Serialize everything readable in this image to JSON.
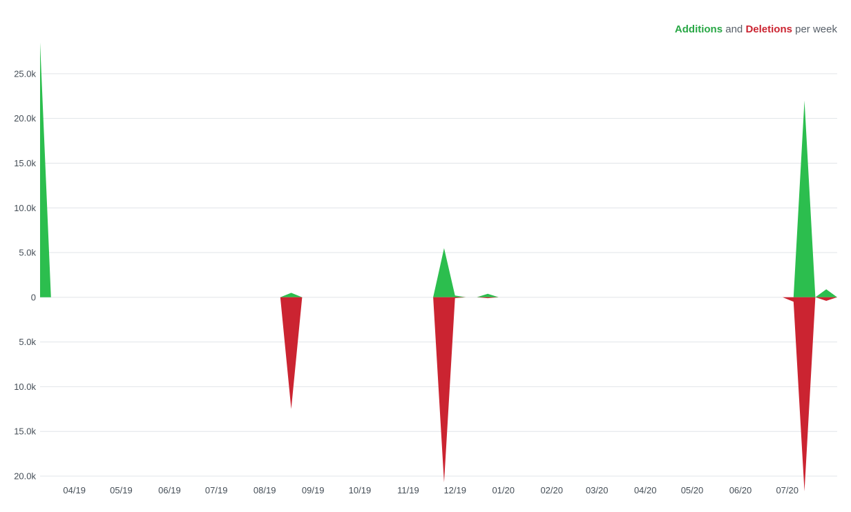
{
  "legend": {
    "additions_label": "Additions",
    "and_text": "and",
    "deletions_label": "Deletions",
    "per_week_text": "per week"
  },
  "colors": {
    "additions": "#2cbe4e",
    "deletions": "#cb2431",
    "grid": "#e1e4e8",
    "text": "#586069"
  },
  "chart_data": {
    "type": "area",
    "ylim": [
      -20000,
      28000
    ],
    "y_ticks": [
      {
        "value": 25000,
        "label": "25.0k"
      },
      {
        "value": 20000,
        "label": "20.0k"
      },
      {
        "value": 15000,
        "label": "15.0k"
      },
      {
        "value": 10000,
        "label": "10.0k"
      },
      {
        "value": 5000,
        "label": "5.0k"
      },
      {
        "value": 0,
        "label": "0"
      },
      {
        "value": -5000,
        "label": "5.0k"
      },
      {
        "value": -10000,
        "label": "10.0k"
      },
      {
        "value": -15000,
        "label": "15.0k"
      },
      {
        "value": -20000,
        "label": "20.0k"
      }
    ],
    "x_range": [
      "2019-03-10",
      "2020-08-02"
    ],
    "x_ticks": [
      {
        "date": "2019-04-01",
        "label": "04/19"
      },
      {
        "date": "2019-05-01",
        "label": "05/19"
      },
      {
        "date": "2019-06-01",
        "label": "06/19"
      },
      {
        "date": "2019-07-01",
        "label": "07/19"
      },
      {
        "date": "2019-08-01",
        "label": "08/19"
      },
      {
        "date": "2019-09-01",
        "label": "09/19"
      },
      {
        "date": "2019-10-01",
        "label": "10/19"
      },
      {
        "date": "2019-11-01",
        "label": "11/19"
      },
      {
        "date": "2019-12-01",
        "label": "12/19"
      },
      {
        "date": "2020-01-01",
        "label": "01/20"
      },
      {
        "date": "2020-02-01",
        "label": "02/20"
      },
      {
        "date": "2020-03-01",
        "label": "03/20"
      },
      {
        "date": "2020-04-01",
        "label": "04/20"
      },
      {
        "date": "2020-05-01",
        "label": "05/20"
      },
      {
        "date": "2020-06-01",
        "label": "06/20"
      },
      {
        "date": "2020-07-01",
        "label": "07/20"
      }
    ],
    "series": [
      {
        "name": "Additions",
        "color": "#2cbe4e",
        "points": [
          {
            "date": "2019-03-10",
            "value": 28500
          },
          {
            "date": "2019-03-17",
            "value": 0
          },
          {
            "date": "2019-08-11",
            "value": 0
          },
          {
            "date": "2019-08-18",
            "value": 500
          },
          {
            "date": "2019-08-25",
            "value": 0
          },
          {
            "date": "2019-11-17",
            "value": 0
          },
          {
            "date": "2019-11-24",
            "value": 5500
          },
          {
            "date": "2019-12-01",
            "value": 200
          },
          {
            "date": "2019-12-08",
            "value": 0
          },
          {
            "date": "2019-12-15",
            "value": 0
          },
          {
            "date": "2019-12-22",
            "value": 400
          },
          {
            "date": "2019-12-29",
            "value": 0
          },
          {
            "date": "2020-07-05",
            "value": 0
          },
          {
            "date": "2020-07-12",
            "value": 22000
          },
          {
            "date": "2020-07-19",
            "value": 0
          },
          {
            "date": "2020-07-26",
            "value": 900
          },
          {
            "date": "2020-08-02",
            "value": 0
          }
        ]
      },
      {
        "name": "Deletions",
        "color": "#cb2431",
        "points": [
          {
            "date": "2019-03-10",
            "value": 0
          },
          {
            "date": "2019-08-11",
            "value": 0
          },
          {
            "date": "2019-08-18",
            "value": -12500
          },
          {
            "date": "2019-08-25",
            "value": 0
          },
          {
            "date": "2019-11-17",
            "value": 0
          },
          {
            "date": "2019-11-24",
            "value": -20700
          },
          {
            "date": "2019-12-01",
            "value": -100
          },
          {
            "date": "2019-12-08",
            "value": 0
          },
          {
            "date": "2019-12-15",
            "value": 0
          },
          {
            "date": "2019-12-22",
            "value": -100
          },
          {
            "date": "2019-12-29",
            "value": 0
          },
          {
            "date": "2020-06-28",
            "value": 0
          },
          {
            "date": "2020-07-05",
            "value": -500
          },
          {
            "date": "2020-07-12",
            "value": -21700
          },
          {
            "date": "2020-07-19",
            "value": 0
          },
          {
            "date": "2020-07-26",
            "value": -400
          },
          {
            "date": "2020-08-02",
            "value": 0
          }
        ]
      }
    ],
    "grid": true,
    "legend_position": "top-right"
  }
}
